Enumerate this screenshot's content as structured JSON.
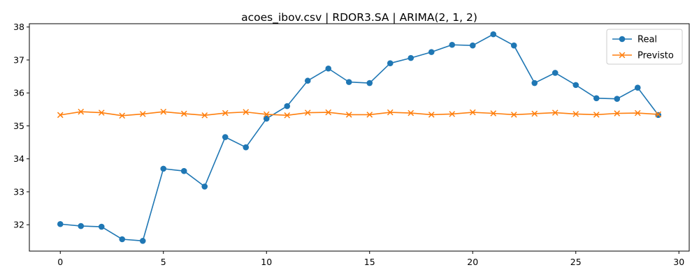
{
  "chart_data": {
    "type": "line",
    "title": "acoes_ibov.csv | RDOR3.SA | ARIMA(2, 1, 2)",
    "xlabel": "",
    "ylabel": "",
    "xlim": [
      -1.5,
      30.5
    ],
    "ylim": [
      31.2,
      38.1
    ],
    "x_ticks": [
      0,
      5,
      10,
      15,
      20,
      25,
      30
    ],
    "y_ticks": [
      32,
      33,
      34,
      35,
      36,
      37,
      38
    ],
    "x": [
      0,
      1,
      2,
      3,
      4,
      5,
      6,
      7,
      8,
      9,
      10,
      11,
      12,
      13,
      14,
      15,
      16,
      17,
      18,
      19,
      20,
      21,
      22,
      23,
      24,
      25,
      26,
      27,
      28,
      29
    ],
    "grid": false,
    "legend_position": "top-right",
    "series": [
      {
        "name": "Real",
        "color": "#1f77b4",
        "marker": "circle",
        "values": [
          32.02,
          31.96,
          31.94,
          31.56,
          31.51,
          33.7,
          33.63,
          33.16,
          34.66,
          34.35,
          35.22,
          35.6,
          36.37,
          36.74,
          36.33,
          36.3,
          36.9,
          37.06,
          37.24,
          37.46,
          37.44,
          37.78,
          37.44,
          36.3,
          36.61,
          36.24,
          35.84,
          35.82,
          36.16,
          35.33
        ]
      },
      {
        "name": "Previsto",
        "color": "#ff7f0e",
        "marker": "x",
        "values": [
          35.33,
          35.43,
          35.4,
          35.31,
          35.36,
          35.43,
          35.37,
          35.32,
          35.39,
          35.42,
          35.35,
          35.32,
          35.4,
          35.41,
          35.34,
          35.34,
          35.41,
          35.39,
          35.34,
          35.36,
          35.41,
          35.38,
          35.34,
          35.37,
          35.4,
          35.36,
          35.34,
          35.38,
          35.39,
          35.35
        ]
      }
    ]
  }
}
